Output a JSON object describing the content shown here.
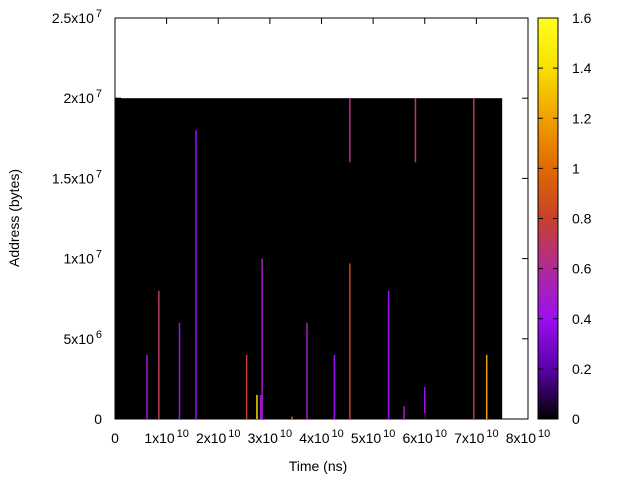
{
  "chart_data": {
    "type": "heatmap",
    "title": "",
    "xlabel": "Time (ns)",
    "ylabel": "Address (bytes)",
    "xlim": [
      0,
      80000000000.0
    ],
    "ylim": [
      0,
      25000000.0
    ],
    "x_ticks": [
      {
        "value": 0,
        "mantissa": "0",
        "exp": ""
      },
      {
        "value": 10000000000.0,
        "mantissa": "1x10",
        "exp": "10"
      },
      {
        "value": 20000000000.0,
        "mantissa": "2x10",
        "exp": "10"
      },
      {
        "value": 30000000000.0,
        "mantissa": "3x10",
        "exp": "10"
      },
      {
        "value": 40000000000.0,
        "mantissa": "4x10",
        "exp": "10"
      },
      {
        "value": 50000000000.0,
        "mantissa": "5x10",
        "exp": "10"
      },
      {
        "value": 60000000000.0,
        "mantissa": "6x10",
        "exp": "10"
      },
      {
        "value": 70000000000.0,
        "mantissa": "7x10",
        "exp": "10"
      },
      {
        "value": 80000000000.0,
        "mantissa": "8x10",
        "exp": "10"
      }
    ],
    "y_ticks": [
      {
        "value": 0,
        "mantissa": "0",
        "exp": ""
      },
      {
        "value": 5000000.0,
        "mantissa": "5x10",
        "exp": "6"
      },
      {
        "value": 10000000.0,
        "mantissa": "1x10",
        "exp": "7"
      },
      {
        "value": 15000000.0,
        "mantissa": "1.5x10",
        "exp": "7"
      },
      {
        "value": 20000000.0,
        "mantissa": "2x10",
        "exp": "7"
      },
      {
        "value": 25000000.0,
        "mantissa": "2.5x10",
        "exp": "7"
      }
    ],
    "colorbar": {
      "range": [
        0,
        1.6
      ],
      "ticks": [
        "0",
        "0.2",
        "0.4",
        "0.6",
        "0.8",
        "1",
        "1.2",
        "1.4",
        "1.6"
      ],
      "stops": [
        "#000000",
        "#5a00a8",
        "#9a10ee",
        "#b02a9a",
        "#c8402a",
        "#e06a00",
        "#f0a000",
        "#f8e000",
        "#ffff20"
      ]
    },
    "heatmap_background": {
      "x_range": [
        0,
        75000000000.0
      ],
      "y_range": [
        0,
        20000000.0
      ],
      "value": 0
    },
    "streaks": [
      {
        "x": 6200000000.0,
        "y0": 0,
        "y1": 4000000.0,
        "value": 0.45
      },
      {
        "x": 8500000000.0,
        "y0": 0,
        "y1": 8000000.0,
        "value": 0.7
      },
      {
        "x": 12500000000.0,
        "y0": 0,
        "y1": 6000000.0,
        "value": 0.4
      },
      {
        "x": 15700000000.0,
        "y0": 0,
        "y1": 18000000.0,
        "value": 0.4
      },
      {
        "x": 25500000000.0,
        "y0": 0,
        "y1": 4000000.0,
        "value": 0.8
      },
      {
        "x": 27500000000.0,
        "y0": 0,
        "y1": 1500000.0,
        "value": 1.4
      },
      {
        "x": 28200000000.0,
        "y0": 0,
        "y1": 1500000.0,
        "value": 0.45
      },
      {
        "x": 28500000000.0,
        "y0": 0,
        "y1": 10000000.0,
        "value": 0.5
      },
      {
        "x": 34300000000.0,
        "y0": 0,
        "y1": 150000.0,
        "value": 1.0
      },
      {
        "x": 37200000000.0,
        "y0": 0,
        "y1": 6000000.0,
        "value": 0.5
      },
      {
        "x": 42500000000.0,
        "y0": 0,
        "y1": 4000000.0,
        "value": 0.4
      },
      {
        "x": 45500000000.0,
        "y0": 0,
        "y1": 9700000.0,
        "value": 0.8
      },
      {
        "x": 45500000000.0,
        "y0": 16000000.0,
        "y1": 20000000.0,
        "value": 0.65
      },
      {
        "x": 53000000000.0,
        "y0": 0,
        "y1": 8000000.0,
        "value": 0.4
      },
      {
        "x": 56000000000.0,
        "y0": 0,
        "y1": 800000.0,
        "value": 0.5
      },
      {
        "x": 58200000000.0,
        "y0": 16000000.0,
        "y1": 20000000.0,
        "value": 0.75
      },
      {
        "x": 60000000000.0,
        "y0": 0,
        "y1": 2000000.0,
        "value": 0.4
      },
      {
        "x": 69500000000.0,
        "y0": 0,
        "y1": 20000000.0,
        "value": 0.75
      },
      {
        "x": 72000000000.0,
        "y0": 0,
        "y1": 4000000.0,
        "value": 1.2
      }
    ]
  }
}
